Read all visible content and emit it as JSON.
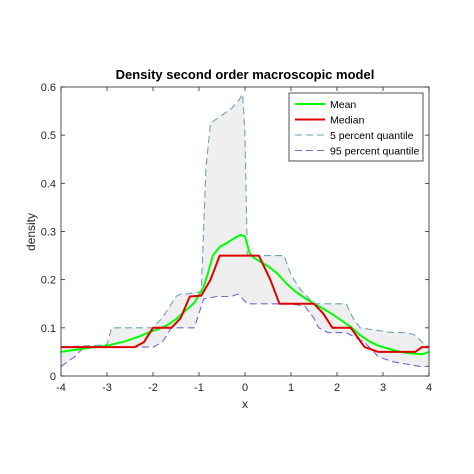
{
  "chart_data": {
    "type": "line",
    "title": "Density second order macroscopic model",
    "xlabel": "x",
    "ylabel": "density",
    "xlim": [
      -4,
      4
    ],
    "ylim": [
      0,
      0.6
    ],
    "x_ticks": [
      -4,
      -3,
      -2,
      -1,
      0,
      1,
      2,
      3,
      4
    ],
    "x_tick_labels": [
      "-4",
      "-3",
      "-2",
      "-1",
      "0",
      "1",
      "2",
      "3",
      "4"
    ],
    "y_ticks": [
      0,
      0.1,
      0.2,
      0.3,
      0.4,
      0.5,
      0.6
    ],
    "y_tick_labels": [
      "0",
      "0.1",
      "0.2",
      "0.3",
      "0.4",
      "0.5",
      "0.6"
    ],
    "grid": false,
    "legend_position": "top-right",
    "band": {
      "between": [
        "5 percent quantile",
        "95 percent quantile"
      ],
      "color": "#efefef"
    },
    "series": [
      {
        "name": "Mean",
        "color": "#00ff00",
        "style": "solid",
        "x": [
          -4,
          -3.5,
          -3,
          -2.6,
          -2.3,
          -2.1,
          -1.9,
          -1.7,
          -1.5,
          -1.3,
          -1.1,
          -0.9,
          -0.8,
          -0.7,
          -0.55,
          -0.4,
          -0.25,
          -0.1,
          0,
          0.1,
          0.2,
          0.35,
          0.5,
          0.7,
          0.9,
          1.1,
          1.3,
          1.5,
          1.7,
          1.9,
          2.1,
          2.3,
          2.5,
          2.7,
          2.9,
          3.1,
          3.3,
          3.5,
          3.7,
          3.85,
          4
        ],
        "y": [
          0.05,
          0.057,
          0.063,
          0.072,
          0.082,
          0.09,
          0.097,
          0.105,
          0.118,
          0.135,
          0.152,
          0.185,
          0.215,
          0.25,
          0.268,
          0.276,
          0.285,
          0.293,
          0.29,
          0.255,
          0.245,
          0.236,
          0.228,
          0.213,
          0.192,
          0.175,
          0.162,
          0.15,
          0.14,
          0.128,
          0.115,
          0.102,
          0.085,
          0.072,
          0.063,
          0.057,
          0.052,
          0.048,
          0.046,
          0.045,
          0.05
        ]
      },
      {
        "name": "Median",
        "color": "#e00000",
        "style": "solid",
        "x": [
          -4,
          -2.4,
          -2.2,
          -2.0,
          -1.6,
          -1.4,
          -1.2,
          -0.95,
          -0.75,
          -0.55,
          -0.3,
          0,
          0.3,
          0.55,
          0.75,
          1.0,
          1.2,
          1.5,
          1.7,
          1.9,
          2.1,
          2.3,
          2.6,
          2.9,
          3.1,
          3.3,
          3.5,
          3.7,
          3.85,
          4
        ],
        "y": [
          0.06,
          0.06,
          0.07,
          0.1,
          0.1,
          0.12,
          0.165,
          0.167,
          0.2,
          0.25,
          0.25,
          0.25,
          0.25,
          0.2,
          0.15,
          0.15,
          0.15,
          0.15,
          0.13,
          0.1,
          0.1,
          0.1,
          0.06,
          0.05,
          0.05,
          0.05,
          0.05,
          0.05,
          0.06,
          0.06
        ]
      },
      {
        "name": "5 percent quantile",
        "color": "#6aa5b6",
        "style": "dashed",
        "x": [
          -4,
          -3.0,
          -2.9,
          -2.0,
          -1.8,
          -1.5,
          -1.4,
          -1.3,
          -0.95,
          -0.85,
          -0.75,
          -0.6,
          -0.45,
          -0.3,
          -0.15,
          -0.05,
          0,
          0.05,
          0.5,
          0.85,
          1.0,
          1.2,
          1.5,
          1.6,
          2.2,
          2.35,
          2.5,
          3.2,
          3.3,
          3.5,
          3.7,
          3.85,
          4
        ],
        "y": [
          0.06,
          0.065,
          0.1,
          0.1,
          0.12,
          0.165,
          0.17,
          0.17,
          0.175,
          0.43,
          0.525,
          0.535,
          0.545,
          0.555,
          0.57,
          0.585,
          0.5,
          0.25,
          0.25,
          0.25,
          0.21,
          0.18,
          0.15,
          0.15,
          0.15,
          0.12,
          0.1,
          0.09,
          0.09,
          0.09,
          0.085,
          0.07,
          0.06
        ]
      },
      {
        "name": "95 percent quantile",
        "color": "#7766cc",
        "style": "dashed",
        "x": [
          -4,
          -3.7,
          -3.5,
          -2.0,
          -1.8,
          -1.6,
          -1.4,
          -1.1,
          -0.9,
          -0.6,
          -0.3,
          -0.15,
          -0.05,
          0.05,
          0.3,
          0.6,
          1.0,
          1.3,
          1.5,
          1.6,
          1.8,
          2.2,
          2.6,
          2.9,
          3.2,
          3.5,
          3.8,
          4
        ],
        "y": [
          0.02,
          0.04,
          0.06,
          0.06,
          0.07,
          0.1,
          0.1,
          0.1,
          0.16,
          0.165,
          0.165,
          0.17,
          0.16,
          0.15,
          0.15,
          0.15,
          0.15,
          0.145,
          0.12,
          0.1,
          0.09,
          0.09,
          0.07,
          0.04,
          0.03,
          0.025,
          0.02,
          0.02
        ]
      }
    ]
  }
}
